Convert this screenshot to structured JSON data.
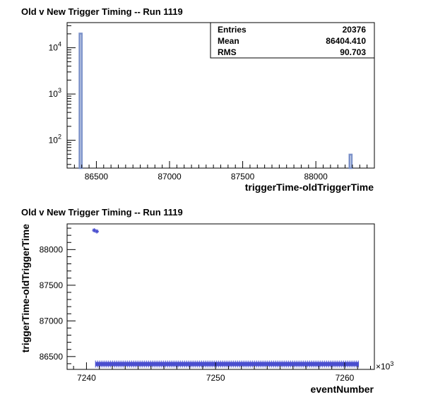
{
  "chart_data": [
    {
      "type": "bar",
      "title": "Old v New Trigger Timing -- Run 1119",
      "xlabel": "triggerTime-oldTriggerTime",
      "ylabel": "",
      "xlim": [
        86300,
        88400
      ],
      "ylim": [
        25,
        35000
      ],
      "yscale": "log",
      "x_ticks": [
        86500,
        87000,
        87500,
        88000
      ],
      "y_ticks": [
        {
          "value": 100,
          "base": "10",
          "exp": "2"
        },
        {
          "value": 1000,
          "base": "10",
          "exp": "3"
        },
        {
          "value": 10000,
          "base": "10",
          "exp": "4"
        }
      ],
      "bins": [
        {
          "x0": 86380,
          "x1": 86405,
          "value": 20300
        },
        {
          "x0": 88225,
          "x1": 88250,
          "value": 49
        }
      ],
      "stats": {
        "rows": [
          {
            "label": "Entries",
            "value": "20376"
          },
          {
            "label": "Mean",
            "value": "86404.410"
          },
          {
            "label": "RMS",
            "value": "90.703"
          }
        ]
      },
      "colors": {
        "bar": "#7b91c9"
      }
    },
    {
      "type": "scatter",
      "title": "Old v New Trigger Timing -- Run 1119",
      "xlabel": "eventNumber",
      "ylabel": "triggerTime-oldTriggerTime",
      "xlim": [
        7238.5,
        7262.3
      ],
      "ylim": [
        86320,
        88360
      ],
      "x_ticks": [
        7240,
        7250,
        7260
      ],
      "x_multiplier": "×10",
      "x_multiplier_exp": "3",
      "y_ticks": [
        86500,
        87000,
        87500,
        88000
      ],
      "series": [
        {
          "x_range": [
            7240.7,
            7261.1
          ],
          "y": 86395,
          "note_points": "dense band"
        },
        {
          "points": [
            [
              7240.6,
              88270
            ],
            [
              7240.8,
              88255
            ]
          ]
        }
      ],
      "colors": {
        "marker": "#4a4fcf"
      }
    }
  ]
}
